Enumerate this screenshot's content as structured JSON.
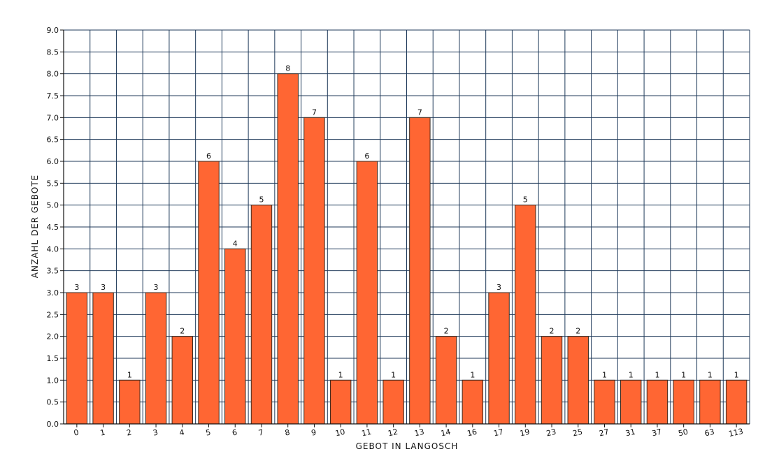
{
  "chart_data": {
    "type": "bar",
    "title": "",
    "xlabel": "GEBOT IN LANGOSCH",
    "ylabel": "ANZAHL DER GEBOTE",
    "categories": [
      "0",
      "1",
      "2",
      "3",
      "4",
      "5",
      "6",
      "7",
      "8",
      "9",
      "10",
      "11",
      "12",
      "13",
      "14",
      "16",
      "17",
      "19",
      "23",
      "25",
      "27",
      "31",
      "37",
      "50",
      "63",
      "113"
    ],
    "values": [
      3,
      3,
      1,
      3,
      2,
      6,
      4,
      5,
      8,
      7,
      1,
      6,
      1,
      7,
      2,
      1,
      3,
      5,
      2,
      2,
      1,
      1,
      1,
      1,
      1,
      1
    ],
    "data_labels": [
      "3",
      "3",
      "1",
      "3",
      "2",
      "6",
      "4",
      "5",
      "8",
      "7",
      "1",
      "6",
      "1",
      "7",
      "2",
      "1",
      "3",
      "5",
      "2",
      "2",
      "1",
      "1",
      "1",
      "1",
      "1",
      "1"
    ],
    "ylim": [
      0,
      9
    ],
    "y_ticks": [
      "0.0",
      "0.5",
      "1.0",
      "1.5",
      "2.0",
      "2.5",
      "3.0",
      "3.5",
      "4.0",
      "4.5",
      "5.0",
      "5.5",
      "6.0",
      "6.5",
      "7.0",
      "7.5",
      "8.0",
      "8.5",
      "9.0"
    ],
    "grid": true,
    "legend": "none",
    "colors": {
      "bar": "#ff6633",
      "bar_edge": "#3a2a20",
      "grid": "#1f3a5a",
      "axis": "#111111"
    }
  }
}
